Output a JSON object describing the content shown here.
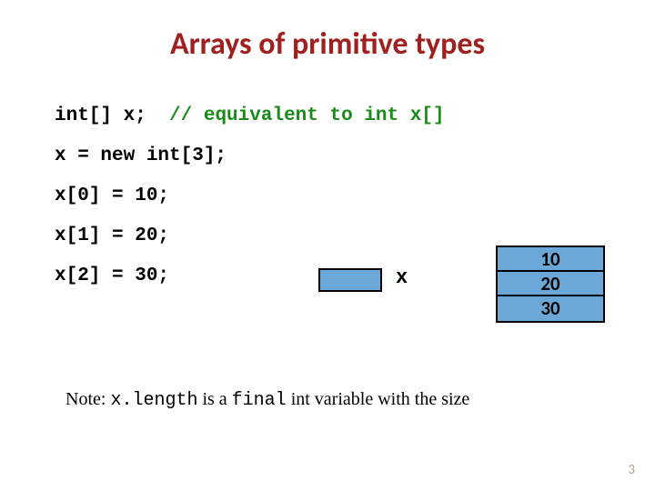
{
  "title": "Arrays of primitive types",
  "code": {
    "line1_decl": "int[] x;",
    "line1_comment": "// equivalent to int x[]",
    "line2": "x = new int[3];",
    "line3": "x[0] = 10;",
    "line4": "x[1] = 20;",
    "line5": "x[2] = 30;"
  },
  "diagram": {
    "ref_label": "x",
    "cells": [
      "10",
      "20",
      "30"
    ],
    "ref_fill": "#6ba8d8",
    "cell_fill": "#6ba8d8",
    "border_color": "#000000"
  },
  "note": {
    "prefix": "Note: ",
    "code1": "x.length",
    "mid": " is a ",
    "code2": "final",
    "suffix": " int variable with the size"
  },
  "page_number": "3",
  "colors": {
    "title": "#a02020",
    "comment": "#1a8a1a",
    "page_num": "#b5a58a",
    "background": "#ffffff"
  },
  "fonts": {
    "title_family": "Calibri, Arial, sans-serif",
    "title_size_pt": 26,
    "code_family": "Courier New, monospace",
    "code_size_pt": 16,
    "note_family": "Georgia, serif",
    "note_size_pt": 15
  }
}
